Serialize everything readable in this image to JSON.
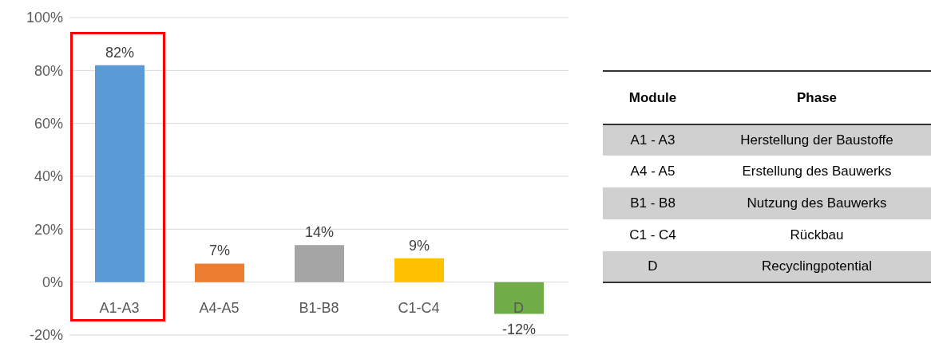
{
  "chart_data": [
    {
      "type": "bar",
      "categories": [
        "A1-A3",
        "A4-A5",
        "B1-B8",
        "C1-C4",
        "D"
      ],
      "values": [
        82,
        7,
        14,
        9,
        -12
      ],
      "colors": [
        "#5b9bd5",
        "#ed7d31",
        "#a5a5a5",
        "#ffc000",
        "#70ad47"
      ],
      "value_labels": [
        "82%",
        "7%",
        "14%",
        "9%",
        "-12%"
      ],
      "ylim": [
        -20,
        100
      ],
      "yticks": [
        {
          "value": -20,
          "label": "-20%"
        },
        {
          "value": 0,
          "label": "0%"
        },
        {
          "value": 20,
          "label": "20%"
        },
        {
          "value": 40,
          "label": "40%"
        },
        {
          "value": 60,
          "label": "60%"
        },
        {
          "value": 80,
          "label": "80%"
        },
        {
          "value": 100,
          "label": "100%"
        }
      ],
      "grid": "y"
    },
    {
      "type": "other",
      "annotations": [
        "Module",
        "Phase",
        "A1 - A3",
        "Herstellung der Baustoffe",
        "A4 - A5",
        "Erstellung des Bauwerks",
        "B1 - B8",
        "Nutzung des Bauwerks",
        "C1 - C4",
        "Rückbau",
        "D",
        "Recyclingpotential"
      ]
    }
  ]
}
